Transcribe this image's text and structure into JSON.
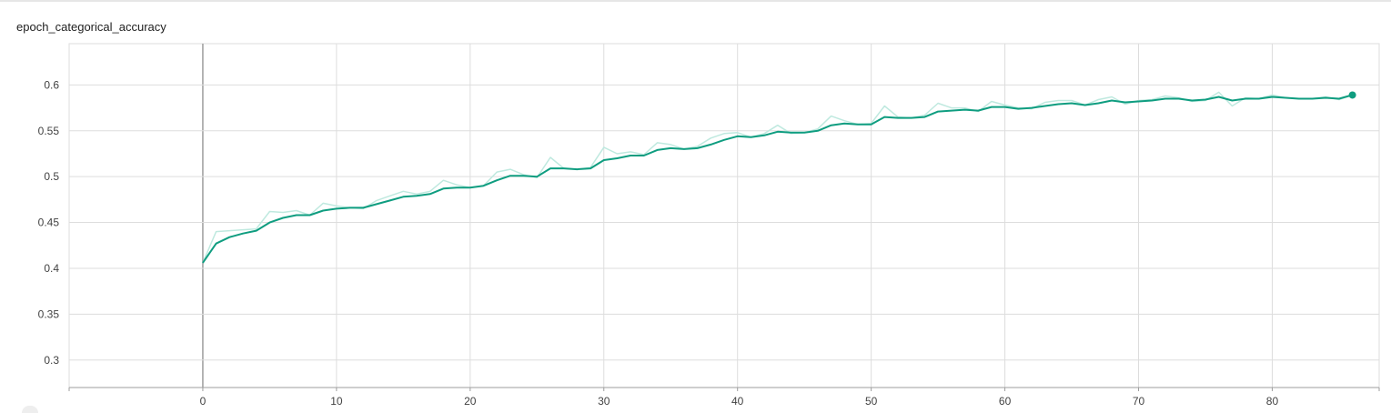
{
  "card": {
    "title": "epoch_categorical_accuracy"
  },
  "colors": {
    "smoothed": "#0f9d80",
    "raw": "#bfe9df",
    "grid": "#dddddd",
    "zero_line": "#9e9e9e",
    "axis": "#9e9e9e"
  },
  "chart_data": {
    "type": "line",
    "title": "epoch_categorical_accuracy",
    "xlabel": "",
    "ylabel": "",
    "xlim": [
      -10,
      88
    ],
    "ylim": [
      0.27,
      0.645
    ],
    "x_ticks": [
      0,
      10,
      20,
      30,
      40,
      50,
      60,
      70,
      80
    ],
    "y_ticks": [
      0.3,
      0.35,
      0.4,
      0.45,
      0.5,
      0.55,
      0.6
    ],
    "x_tick_labels": [
      "0",
      "10",
      "20",
      "30",
      "40",
      "50",
      "60",
      "70",
      "80"
    ],
    "y_tick_labels": [
      "0.3",
      "0.35",
      "0.4",
      "0.45",
      "0.5",
      "0.55",
      "0.6"
    ],
    "grid": true,
    "legend": "none",
    "series": [
      {
        "role": "raw",
        "x": [
          0,
          1,
          2,
          3,
          4,
          5,
          6,
          7,
          8,
          9,
          10,
          11,
          12,
          13,
          14,
          15,
          16,
          17,
          18,
          19,
          20,
          21,
          22,
          23,
          24,
          25,
          26,
          27,
          28,
          29,
          30,
          31,
          32,
          33,
          34,
          35,
          36,
          37,
          38,
          39,
          40,
          41,
          42,
          43,
          44,
          45,
          46,
          47,
          48,
          49,
          50,
          51,
          52,
          53,
          54,
          55,
          56,
          57,
          58,
          59,
          60,
          61,
          62,
          63,
          64,
          65,
          66,
          67,
          68,
          69,
          70,
          71,
          72,
          73,
          74,
          75,
          76,
          77,
          78,
          79,
          80,
          81,
          82,
          83,
          84,
          85,
          86
        ],
        "values": [
          0.406,
          0.44,
          0.441,
          0.442,
          0.443,
          0.462,
          0.461,
          0.463,
          0.458,
          0.471,
          0.468,
          0.466,
          0.465,
          0.474,
          0.479,
          0.484,
          0.481,
          0.484,
          0.496,
          0.491,
          0.488,
          0.49,
          0.505,
          0.508,
          0.502,
          0.499,
          0.521,
          0.509,
          0.508,
          0.51,
          0.532,
          0.525,
          0.527,
          0.524,
          0.537,
          0.535,
          0.53,
          0.533,
          0.542,
          0.547,
          0.548,
          0.543,
          0.547,
          0.556,
          0.547,
          0.548,
          0.552,
          0.566,
          0.561,
          0.557,
          0.558,
          0.577,
          0.565,
          0.564,
          0.567,
          0.58,
          0.575,
          0.575,
          0.571,
          0.582,
          0.578,
          0.575,
          0.574,
          0.581,
          0.583,
          0.583,
          0.578,
          0.584,
          0.587,
          0.579,
          0.583,
          0.584,
          0.588,
          0.586,
          0.582,
          0.583,
          0.592,
          0.577,
          0.586,
          0.585,
          0.589,
          0.586,
          0.585,
          0.585,
          0.587,
          0.584,
          0.589
        ]
      },
      {
        "role": "smoothed",
        "x": [
          0,
          1,
          2,
          3,
          4,
          5,
          6,
          7,
          8,
          9,
          10,
          11,
          12,
          13,
          14,
          15,
          16,
          17,
          18,
          19,
          20,
          21,
          22,
          23,
          24,
          25,
          26,
          27,
          28,
          29,
          30,
          31,
          32,
          33,
          34,
          35,
          36,
          37,
          38,
          39,
          40,
          41,
          42,
          43,
          44,
          45,
          46,
          47,
          48,
          49,
          50,
          51,
          52,
          53,
          54,
          55,
          56,
          57,
          58,
          59,
          60,
          61,
          62,
          63,
          64,
          65,
          66,
          67,
          68,
          69,
          70,
          71,
          72,
          73,
          74,
          75,
          76,
          77,
          78,
          79,
          80,
          81,
          82,
          83,
          84,
          85,
          86
        ],
        "values": [
          0.406,
          0.427,
          0.434,
          0.438,
          0.441,
          0.45,
          0.455,
          0.458,
          0.458,
          0.463,
          0.465,
          0.466,
          0.466,
          0.47,
          0.474,
          0.478,
          0.479,
          0.481,
          0.487,
          0.488,
          0.488,
          0.49,
          0.496,
          0.501,
          0.501,
          0.5,
          0.509,
          0.509,
          0.508,
          0.509,
          0.518,
          0.52,
          0.523,
          0.523,
          0.529,
          0.531,
          0.53,
          0.531,
          0.535,
          0.54,
          0.544,
          0.543,
          0.545,
          0.549,
          0.548,
          0.548,
          0.55,
          0.556,
          0.558,
          0.557,
          0.557,
          0.565,
          0.564,
          0.564,
          0.565,
          0.571,
          0.572,
          0.573,
          0.572,
          0.576,
          0.576,
          0.574,
          0.575,
          0.577,
          0.579,
          0.58,
          0.578,
          0.58,
          0.583,
          0.581,
          0.582,
          0.583,
          0.585,
          0.585,
          0.583,
          0.584,
          0.587,
          0.583,
          0.585,
          0.585,
          0.587,
          0.586,
          0.585,
          0.585,
          0.586,
          0.585,
          0.589
        ]
      }
    ]
  }
}
